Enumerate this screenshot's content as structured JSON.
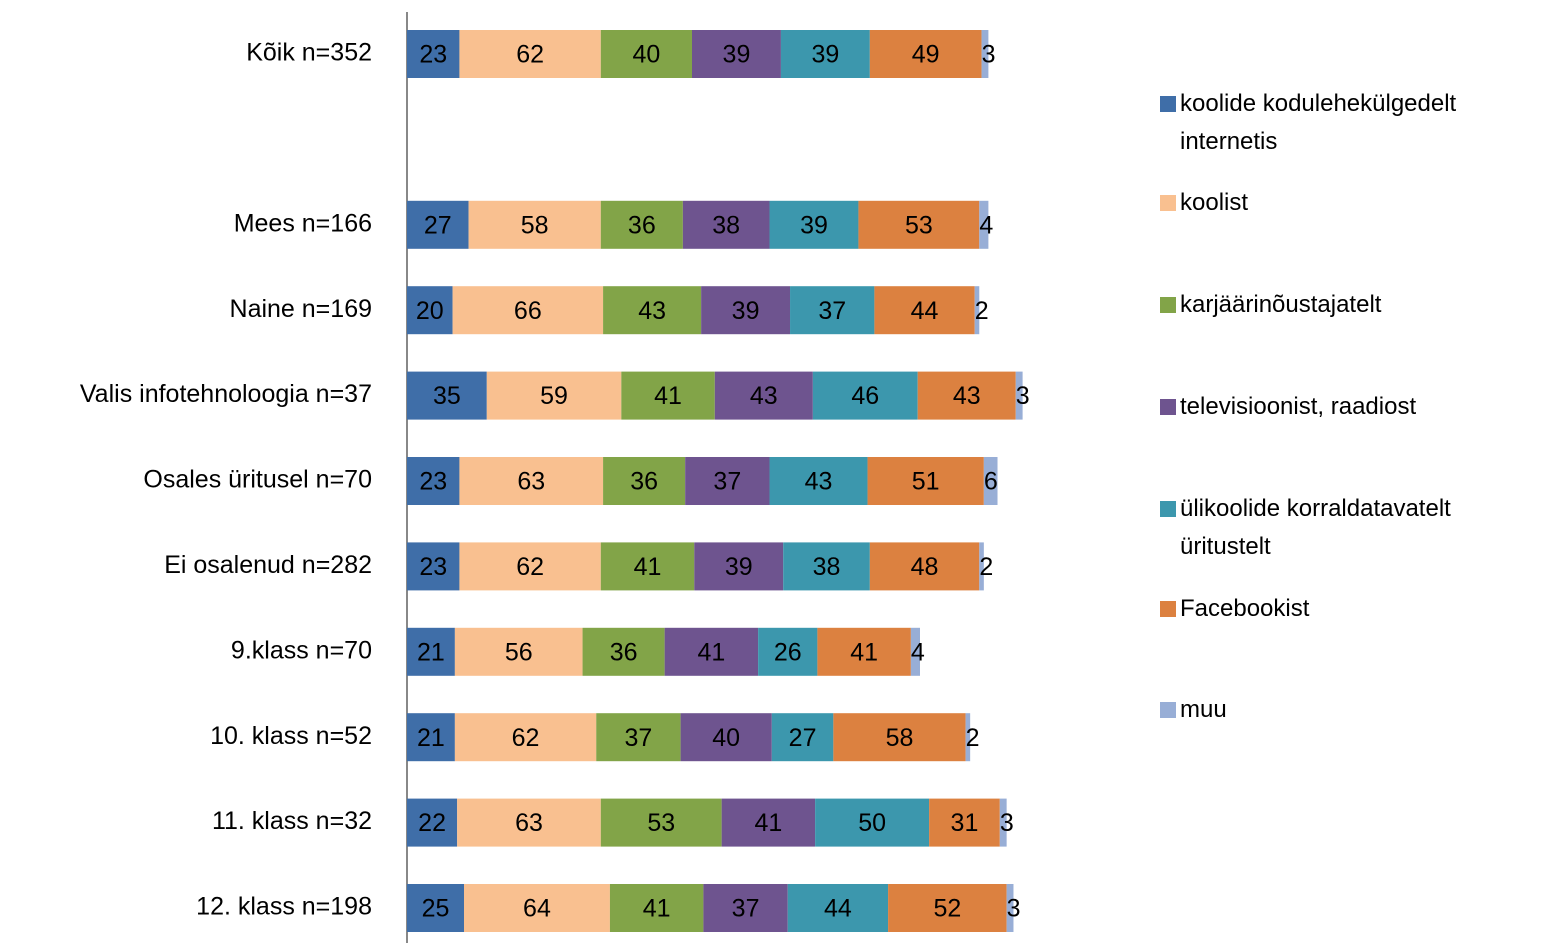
{
  "chart_data": {
    "type": "stacked-bar-horizontal",
    "categories": [
      "Kõik n=352",
      null,
      "Mees n=166",
      "Naine n=169",
      "Valis infotehnoloogia n=37",
      "Osales üritusel n=70",
      "Ei osalenud n=282",
      "9.klass n=70",
      "10. klass n=52",
      "11. klass n=32",
      "12. klass n=198"
    ],
    "series": [
      {
        "name": "koolide kodulehekülgedelt internetis",
        "color": "#3f6ea8",
        "values": [
          23,
          null,
          27,
          20,
          35,
          23,
          23,
          21,
          21,
          22,
          25
        ]
      },
      {
        "name": "koolist",
        "color": "#f9c090",
        "values": [
          62,
          null,
          58,
          66,
          59,
          63,
          62,
          56,
          62,
          63,
          64
        ]
      },
      {
        "name": "karjäärinõustajatelt",
        "color": "#82a448",
        "values": [
          40,
          null,
          36,
          43,
          41,
          36,
          41,
          36,
          37,
          53,
          41
        ]
      },
      {
        "name": "televisioonist, raadiost",
        "color": "#6e548f",
        "values": [
          39,
          null,
          38,
          39,
          43,
          37,
          39,
          41,
          40,
          41,
          37
        ]
      },
      {
        "name": "ülikoolide korraldatavatelt üritustelt",
        "color": "#3c97ad",
        "values": [
          39,
          null,
          39,
          37,
          46,
          43,
          38,
          26,
          27,
          50,
          44
        ]
      },
      {
        "name": "Facebookist",
        "color": "#dc8140",
        "values": [
          49,
          null,
          53,
          44,
          43,
          51,
          48,
          41,
          58,
          31,
          52
        ]
      },
      {
        "name": "muu",
        "color": "#98aed6",
        "values": [
          3,
          null,
          4,
          2,
          3,
          6,
          2,
          4,
          2,
          3,
          3
        ]
      }
    ]
  }
}
